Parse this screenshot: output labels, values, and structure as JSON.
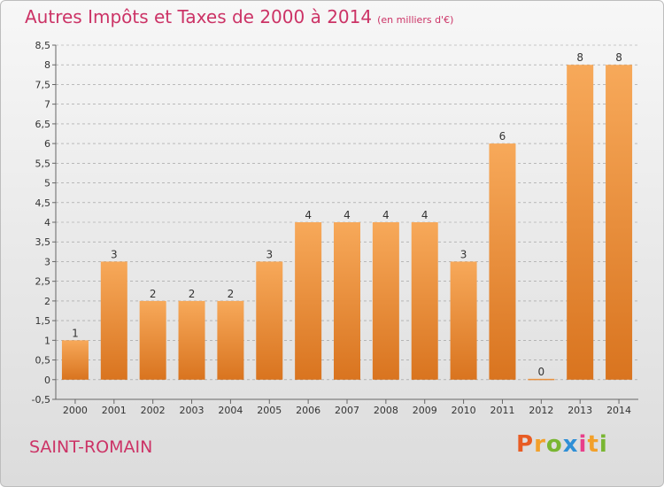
{
  "header": {
    "title": "Autres Impôts et Taxes de 2000 à 2014",
    "unit": "(en milliers d'€)"
  },
  "footer": {
    "place": "SAINT-ROMAIN",
    "brand_letters": [
      "P",
      "r",
      "o",
      "x",
      "i",
      "t",
      "i"
    ],
    "brand_colors": [
      "#e85c24",
      "#f2a02a",
      "#79b632",
      "#2f8fd6",
      "#e83f8a",
      "#f2a02a",
      "#79b632"
    ]
  },
  "colors": {
    "title": "#cc3366",
    "bar_light": "#f7a95a",
    "bar_dark": "#d9741f",
    "grid": "#999999"
  },
  "chart_data": {
    "type": "bar",
    "categories": [
      "2000",
      "2001",
      "2002",
      "2003",
      "2004",
      "2005",
      "2006",
      "2007",
      "2008",
      "2009",
      "2010",
      "2011",
      "2012",
      "2013",
      "2014"
    ],
    "values": [
      1,
      3,
      2,
      2,
      2,
      3,
      4,
      4,
      4,
      4,
      3,
      6,
      0,
      8,
      8
    ],
    "labels": [
      "1",
      "3",
      "2",
      "2",
      "2",
      "3",
      "4",
      "4",
      "4",
      "4",
      "3",
      "6",
      "0",
      "8",
      "8"
    ],
    "yticks": [
      "-0,5",
      "0",
      "0,5",
      "1",
      "1,5",
      "2",
      "2,5",
      "3",
      "3,5",
      "4",
      "4,5",
      "5",
      "5,5",
      "6",
      "6,5",
      "7",
      "7,5",
      "8",
      "8,5"
    ],
    "ylim": [
      -0.5,
      8.5
    ],
    "grid": "dashed horizontal"
  }
}
